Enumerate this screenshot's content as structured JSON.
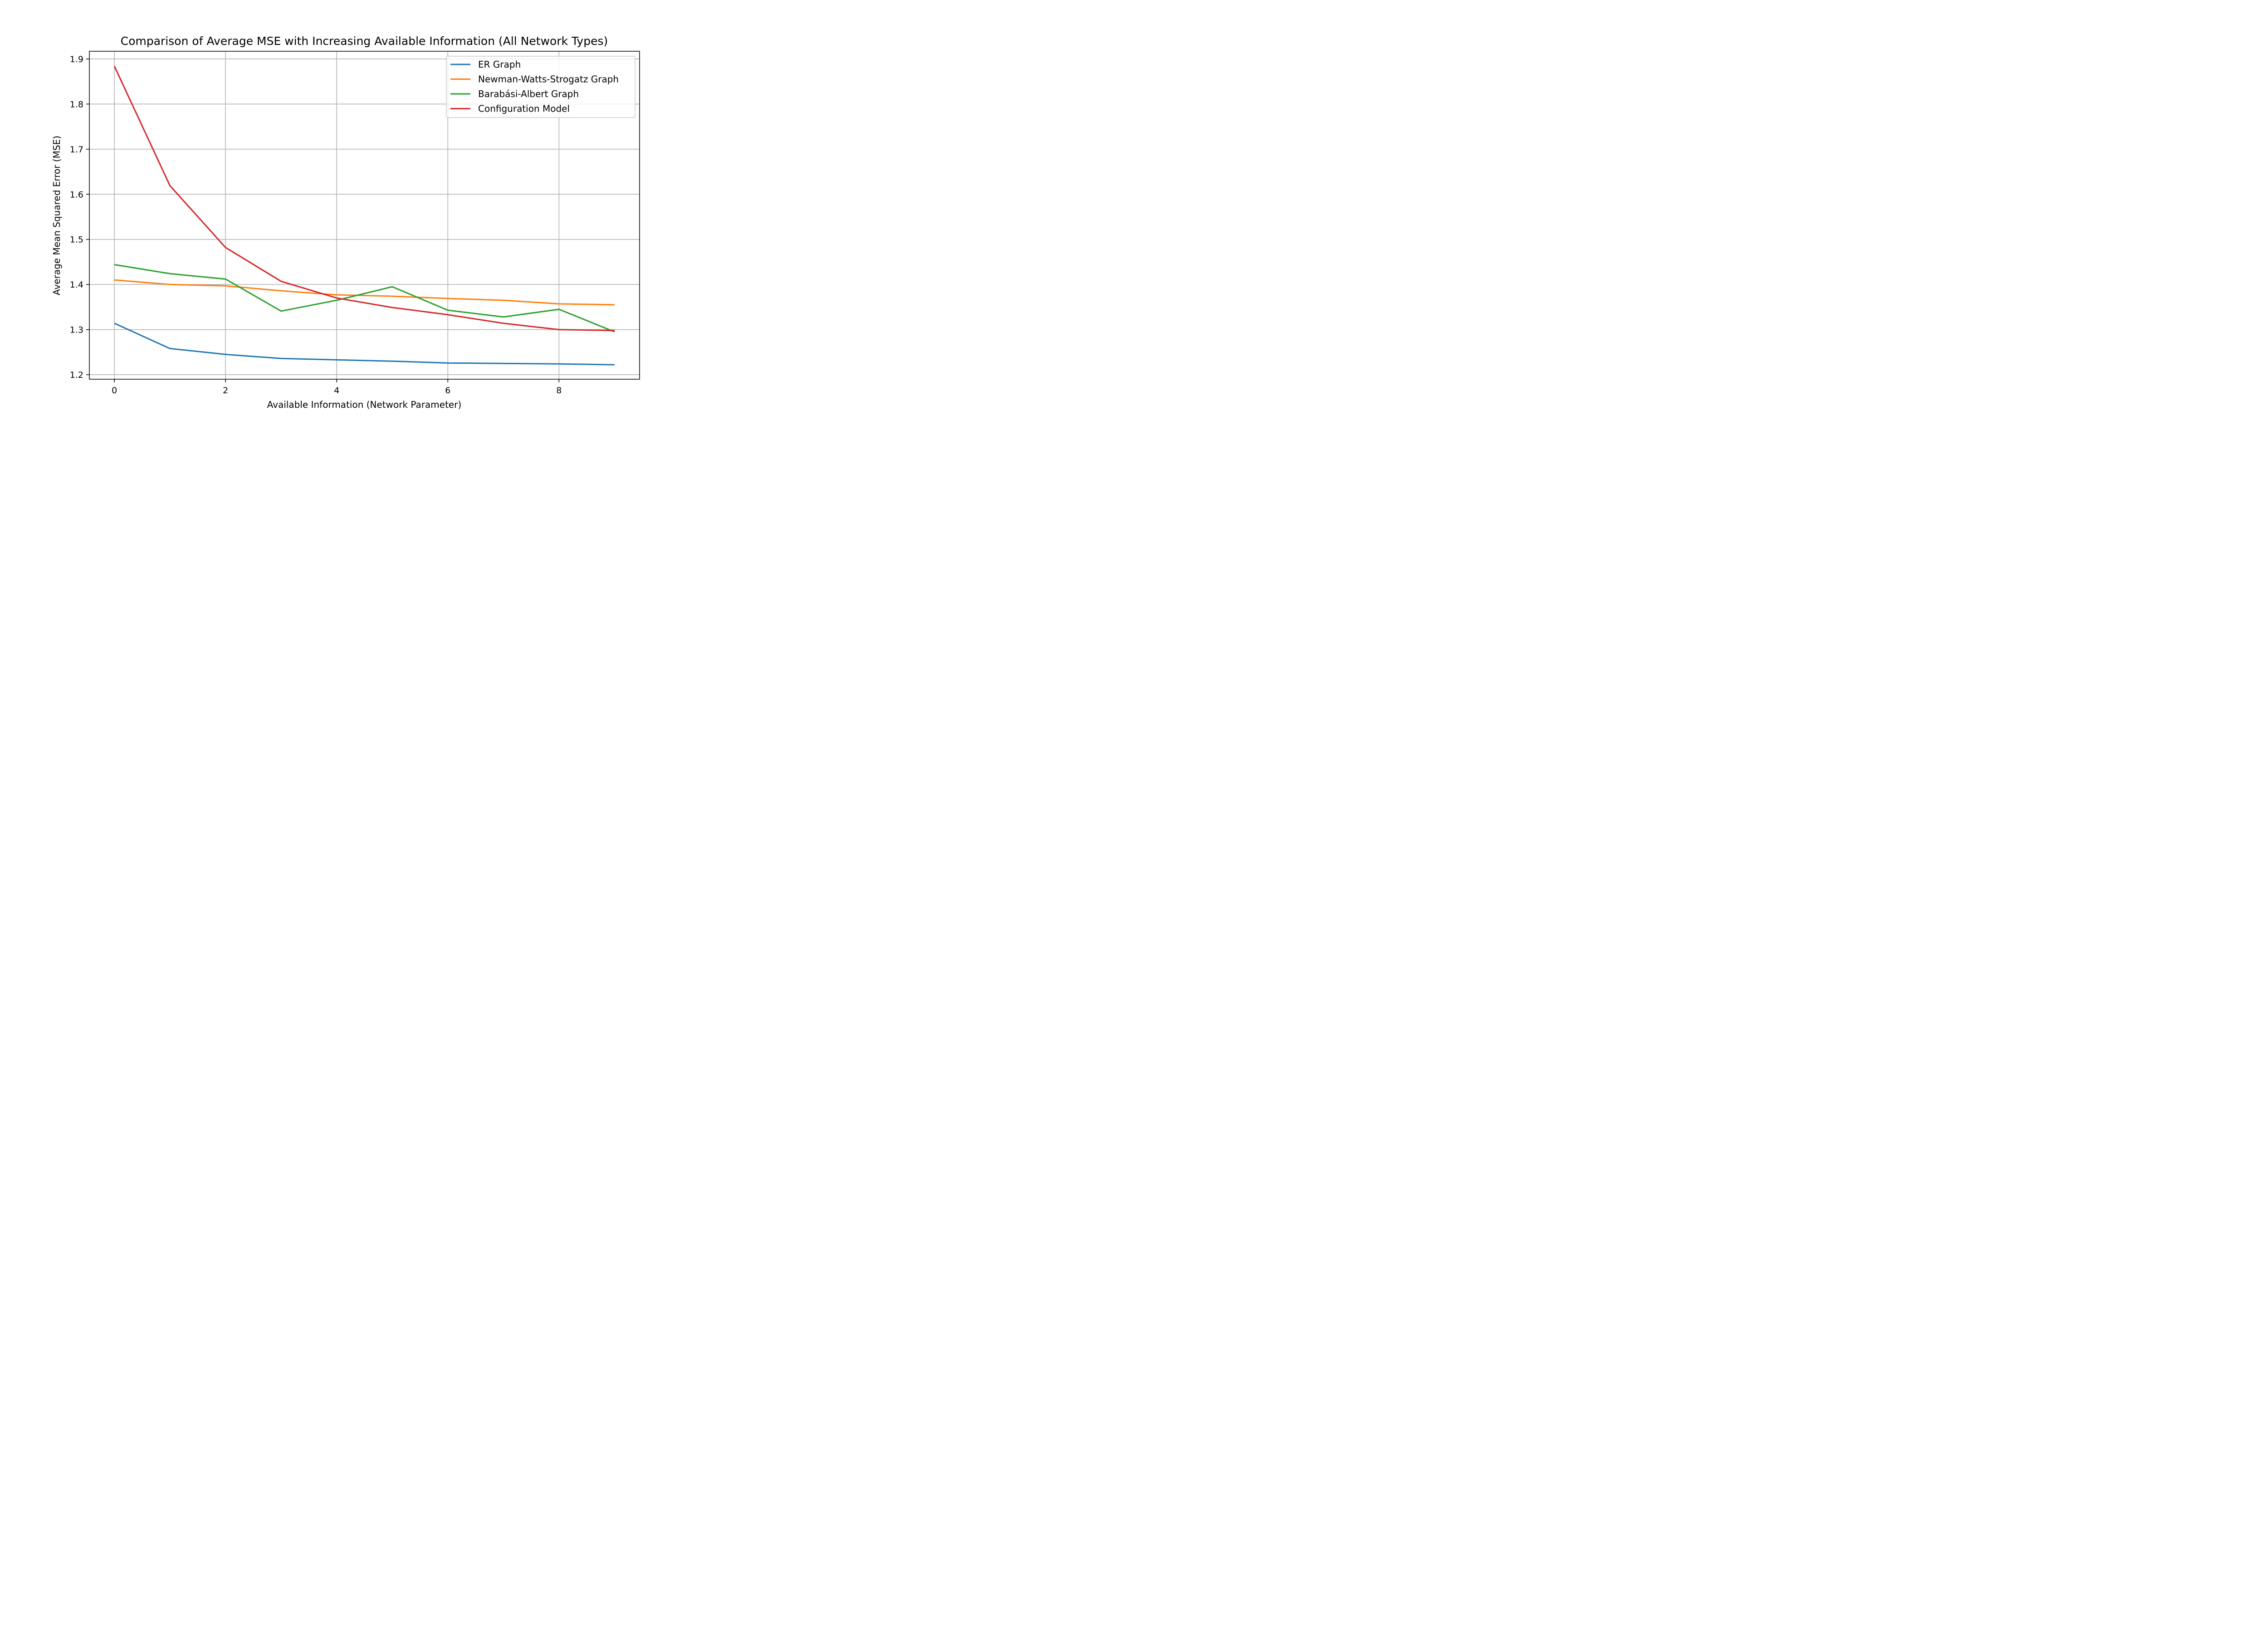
{
  "chart_data": {
    "type": "line",
    "title": "Comparison of Average MSE with Increasing Available Information (All Network Types)",
    "xlabel": "Available Information (Network Parameter)",
    "ylabel": "Average Mean Squared Error (MSE)",
    "x": [
      0,
      1,
      2,
      3,
      4,
      5,
      6,
      7,
      8,
      9
    ],
    "xlim": [
      -0.45,
      9.45
    ],
    "ylim": [
      1.19,
      1.917
    ],
    "xticks": [
      0,
      2,
      4,
      6,
      8
    ],
    "xtick_labels": [
      "0",
      "2",
      "4",
      "6",
      "8"
    ],
    "yticks": [
      1.2,
      1.3,
      1.4,
      1.5,
      1.6,
      1.7,
      1.8,
      1.9
    ],
    "ytick_labels": [
      "1.2",
      "1.3",
      "1.4",
      "1.5",
      "1.6",
      "1.7",
      "1.8",
      "1.9"
    ],
    "grid": true,
    "legend_position": "top-right",
    "series": [
      {
        "name": "ER Graph",
        "color": "#1f77b4",
        "values": [
          1.314,
          1.258,
          1.245,
          1.236,
          1.233,
          1.23,
          1.226,
          1.225,
          1.224,
          1.222
        ]
      },
      {
        "name": "Newman-Watts-Strogatz Graph",
        "color": "#ff7f0e",
        "values": [
          1.41,
          1.4,
          1.397,
          1.386,
          1.377,
          1.374,
          1.369,
          1.365,
          1.357,
          1.355
        ]
      },
      {
        "name": "Barabási-Albert Graph",
        "color": "#2ca02c",
        "values": [
          1.444,
          1.424,
          1.412,
          1.341,
          1.365,
          1.395,
          1.343,
          1.328,
          1.345,
          1.295
        ]
      },
      {
        "name": "Configuration Model",
        "color": "#d62728",
        "values": [
          1.884,
          1.619,
          1.482,
          1.407,
          1.37,
          1.349,
          1.333,
          1.314,
          1.3,
          1.298
        ]
      }
    ]
  }
}
